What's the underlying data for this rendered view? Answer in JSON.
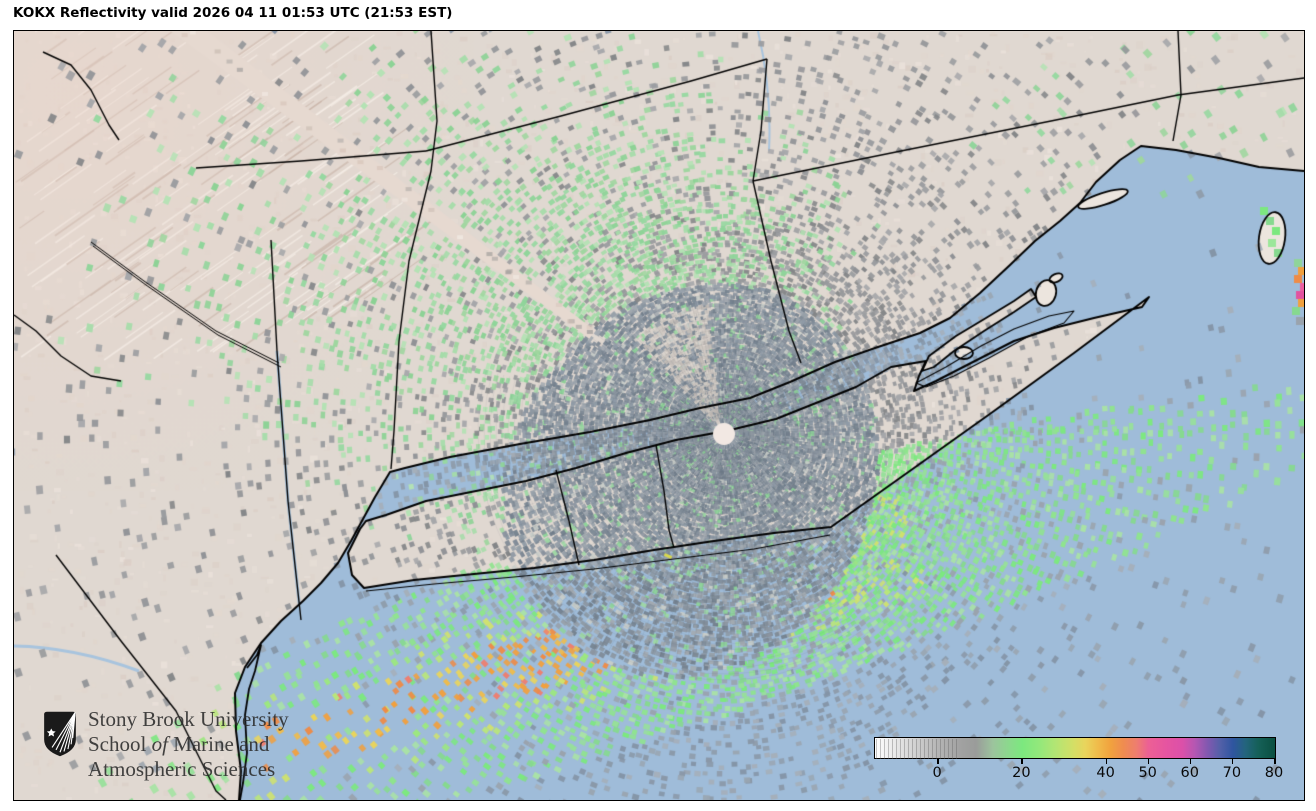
{
  "title": "KOKX Reflectivity valid 2026 04 11 01:53 UTC (21:53 EST)",
  "station": "KOKX",
  "product": "Reflectivity",
  "valid_time_utc": "2026 04 11 01:53 UTC",
  "valid_time_local": "21:53 EST",
  "logo": {
    "line1": "Stony Brook University",
    "line2_pre": "School ",
    "line2_italic": "of",
    "line2_post": " Marine and",
    "line3": "Atmospheric Sciences"
  },
  "colorbar": {
    "tick_values": [
      0,
      20,
      40,
      50,
      60,
      70,
      80
    ],
    "value_range": [
      -15,
      80
    ],
    "stops": [
      [
        -15,
        "#ffffff"
      ],
      [
        -10,
        "#e8e8e8"
      ],
      [
        -5,
        "#cfcfcf"
      ],
      [
        0,
        "#b5b5b5"
      ],
      [
        5,
        "#a2a2a2"
      ],
      [
        9,
        "#9a9c9a"
      ],
      [
        13,
        "#9cc49d"
      ],
      [
        17,
        "#8ada8c"
      ],
      [
        20,
        "#7ce87f"
      ],
      [
        24,
        "#93e87b"
      ],
      [
        28,
        "#b4e573"
      ],
      [
        32,
        "#d3df66"
      ],
      [
        35,
        "#e9d45c"
      ],
      [
        38,
        "#f0bb4a"
      ],
      [
        41,
        "#f1a23e"
      ],
      [
        44,
        "#ef8c50"
      ],
      [
        47,
        "#ee7e6e"
      ],
      [
        50,
        "#ec6095"
      ],
      [
        54,
        "#e655a0"
      ],
      [
        58,
        "#dc50a9"
      ],
      [
        61,
        "#b457b2"
      ],
      [
        64,
        "#8158b0"
      ],
      [
        67,
        "#5360a8"
      ],
      [
        70,
        "#2f55a0"
      ],
      [
        73,
        "#23647d"
      ],
      [
        76,
        "#156058"
      ],
      [
        80,
        "#0a4f40"
      ]
    ]
  },
  "palette": {
    "ocean": "#9fbcd9",
    "land": "#e0d8d1",
    "land_light": "#ece5de",
    "terrain_pink": "#e6d2c8",
    "clutter_dark": "#75828f",
    "clutter_mid": "#939ca6",
    "clutter_light": "#a9b0b7",
    "land_clutter": "#96989b",
    "green_soft": "#97d8a1",
    "green": "#86d98f",
    "green_bright": "#7ce87f",
    "yellow": "#e9d45c",
    "orange": "#f1a03e",
    "deep_orange": "#ee8b47",
    "salmon": "#ee7e70",
    "pink": "#ec5fa1",
    "radar_hole": "#f2e8e3",
    "boundary": "#000000"
  }
}
